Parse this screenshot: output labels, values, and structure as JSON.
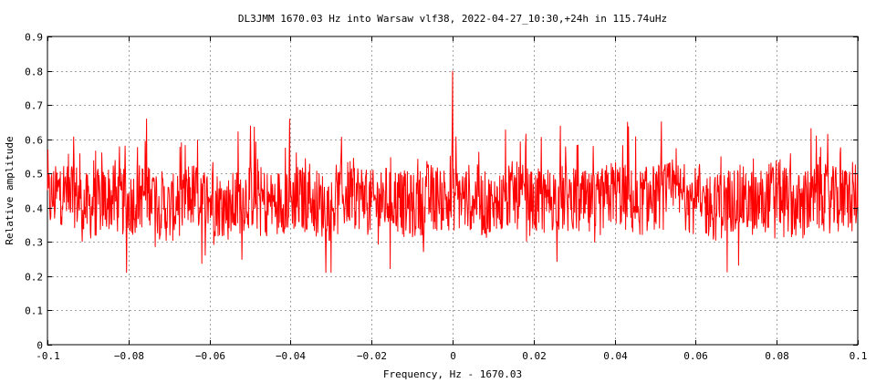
{
  "chart_data": {
    "type": "line",
    "title": "DL3JMM 1670.03 Hz into Warsaw vlf38, 2022-04-27_10:30,+24h in 115.74uHz",
    "xlabel": "Frequency, Hz - 1670.03",
    "ylabel": "Relative amplitude",
    "xlim": [
      -0.1,
      0.1
    ],
    "ylim": [
      0,
      0.9
    ],
    "xticks": [
      -0.1,
      -0.08,
      -0.06,
      -0.04,
      -0.02,
      0,
      0.02,
      0.04,
      0.06,
      0.08,
      0.1
    ],
    "xtick_labels": [
      "-0.1",
      "−0.08",
      "−0.06",
      "−0.04",
      "−0.02",
      "0",
      "0.02",
      "0.04",
      "0.06",
      "0.08",
      "0.1"
    ],
    "yticks": [
      0,
      0.1,
      0.2,
      0.3,
      0.4,
      0.5,
      0.6,
      0.7,
      0.8,
      0.9
    ],
    "ytick_labels": [
      "0",
      "0.1",
      "0.2",
      "0.3",
      "0.4",
      "0.5",
      "0.6",
      "0.7",
      "0.8",
      "0.9"
    ],
    "grid": true,
    "color": "#ff0000",
    "series": [
      {
        "x": [
          -0.1,
          -0.095,
          -0.09,
          -0.085,
          -0.08,
          -0.075,
          -0.07,
          -0.065,
          -0.06,
          -0.055,
          -0.05,
          -0.045,
          -0.04,
          -0.035,
          -0.03,
          -0.025,
          -0.02,
          -0.015,
          -0.01,
          -0.005,
          0,
          0.005,
          0.01,
          0.015,
          0.02,
          0.025,
          0.03,
          0.035,
          0.04,
          0.045,
          0.05,
          0.055,
          0.06,
          0.065,
          0.07,
          0.075,
          0.08,
          0.085,
          0.09,
          0.095,
          0.1
        ],
        "y": [
          0.42,
          0.46,
          0.4,
          0.43,
          0.41,
          0.45,
          0.39,
          0.44,
          0.42,
          0.4,
          0.44,
          0.41,
          0.43,
          0.42,
          0.4,
          0.45,
          0.41,
          0.43,
          0.4,
          0.44,
          0.8,
          0.42,
          0.4,
          0.44,
          0.41,
          0.43,
          0.42,
          0.4,
          0.45,
          0.41,
          0.43,
          0.44,
          0.42,
          0.4,
          0.43,
          0.41,
          0.45,
          0.4,
          0.43,
          0.42,
          0.44
        ]
      }
    ]
  }
}
